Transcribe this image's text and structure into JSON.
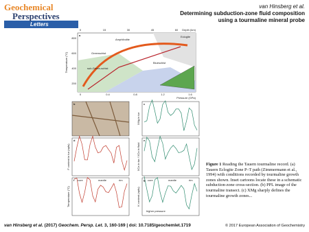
{
  "header": {
    "logo": [
      "Geochemical",
      "Perspectives",
      "Letters"
    ],
    "authors": "van Hinsberg et al.",
    "title_lines": [
      "Determining subduction-zone fluid composition",
      "using a tourmaline mineral probe"
    ]
  },
  "figure": {
    "panel_a": {
      "label": "a",
      "top_axis_title": "Depth (km)",
      "top_ticks": [
        "0",
        "15",
        "30",
        "45",
        "60"
      ],
      "y_axis_title": "Temperature (°C)",
      "y_ticks": [
        "800",
        "600",
        "400",
        "200"
      ],
      "x_axis_title": "Pressure (GPa)",
      "x_ticks": [
        "0",
        "0.4",
        "0.8",
        "1.2",
        "1.6"
      ],
      "facies": [
        "Amphibolite",
        "Eclogite",
        "Greenschist",
        "Blueschist",
        "sub-Green-schist"
      ]
    },
    "panels": [
      {
        "label": "b"
      },
      {
        "label": "c",
        "y_axis": "XMg in tur"
      },
      {
        "label": "d",
        "y_axis": "F content in tur (apfu)"
      },
      {
        "label": "e",
        "y_axis": "XCa in tur / XCa in fluid"
      },
      {
        "label": "f",
        "y_axis": "Temperature (°C)"
      },
      {
        "label": "g",
        "y_axis": "K content (apfu)"
      }
    ],
    "zones": [
      "core",
      "mantle",
      "rim"
    ],
    "note": "higher pressure"
  },
  "caption": {
    "label": "Figure 1",
    "text": "Reading the Tauern tourmaline record. (a) Tauern Eclogite Zone P–T path (Zimmermann et al., 1994) with conditions recorded by tourmaline growth zones shown. Inset cartoons locate these in a schematic subduction-zone cross-section. (b) PPL image of the tourmaline transect. (c) XMg sharply defines the tourmaline growth zones..."
  },
  "footer": {
    "authors": "van Hinsberg et al.",
    "year": "(2017)",
    "journal": "Geochem. Persp. Let.",
    "ref": "3, 160-169 | doi: 10.7185/geochemlet.1719",
    "copyright": "© 2017 European Association of Geochemistry"
  }
}
